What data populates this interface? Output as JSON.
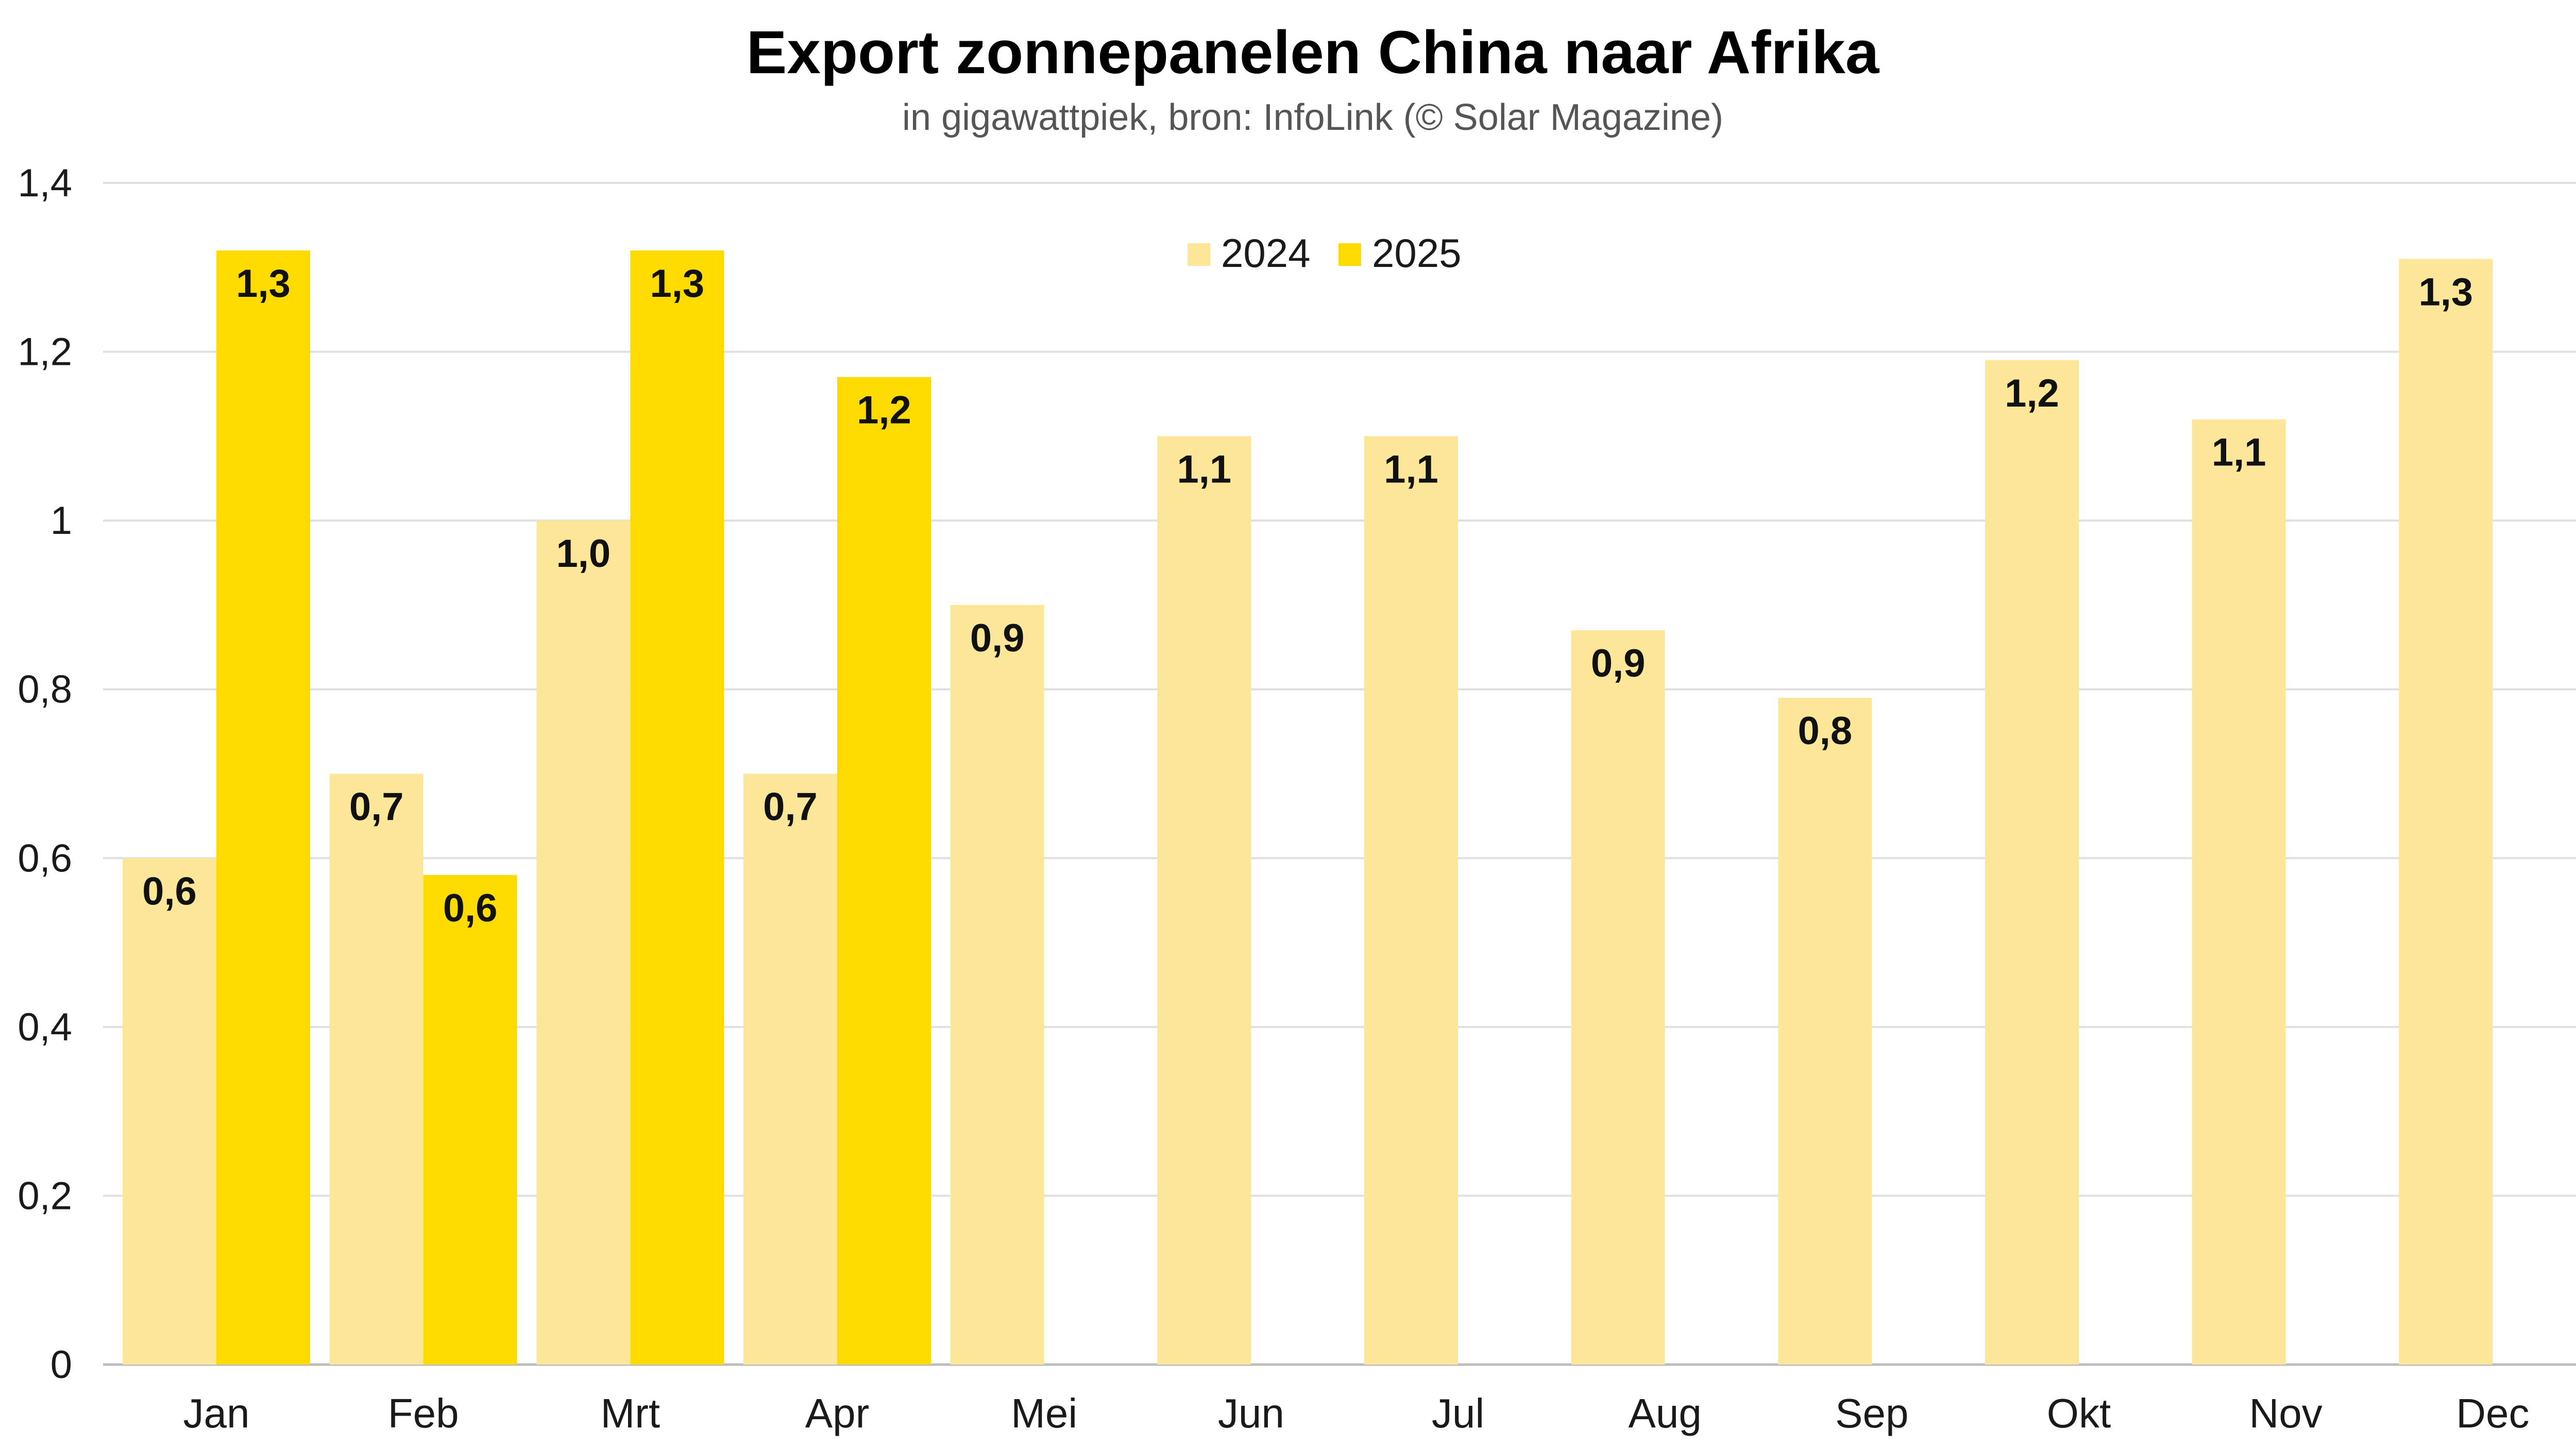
{
  "chart_data": {
    "type": "bar",
    "title": "Export zonnepanelen China naar Afrika",
    "subtitle": "in gigawattpiek, bron: InfoLink (© Solar Magazine)",
    "xlabel": "",
    "ylabel": "",
    "ylim": [
      0,
      1.4
    ],
    "yticks": [
      0,
      0.2,
      0.4,
      0.6,
      0.8,
      1,
      1.2,
      1.4
    ],
    "ytick_labels": [
      "0",
      "0,2",
      "0,4",
      "0,6",
      "0,8",
      "1",
      "1,2",
      "1,4"
    ],
    "grid": true,
    "legend_position": "top-center",
    "categories": [
      "Jan",
      "Feb",
      "Mrt",
      "Apr",
      "Mei",
      "Jun",
      "Jul",
      "Aug",
      "Sep",
      "Okt",
      "Nov",
      "Dec"
    ],
    "series": [
      {
        "name": "2024",
        "color": "#FCE799",
        "values": [
          0.6,
          0.7,
          1.0,
          0.7,
          0.9,
          1.1,
          1.1,
          0.87,
          0.79,
          1.19,
          1.12,
          1.31
        ],
        "labels": [
          "0,6",
          "0,7",
          "1,0",
          "0,7",
          "0,9",
          "1,1",
          "1,1",
          "0,9",
          "0,8",
          "1,2",
          "1,1",
          "1,3"
        ]
      },
      {
        "name": "2025",
        "color": "#FDDB00",
        "values": [
          1.32,
          0.58,
          1.32,
          1.17,
          null,
          null,
          null,
          null,
          null,
          null,
          null,
          null
        ],
        "labels": [
          "1,3",
          "0,6",
          "1,3",
          "1,2",
          "",
          "",
          "",
          "",
          "",
          "",
          "",
          ""
        ]
      }
    ]
  }
}
